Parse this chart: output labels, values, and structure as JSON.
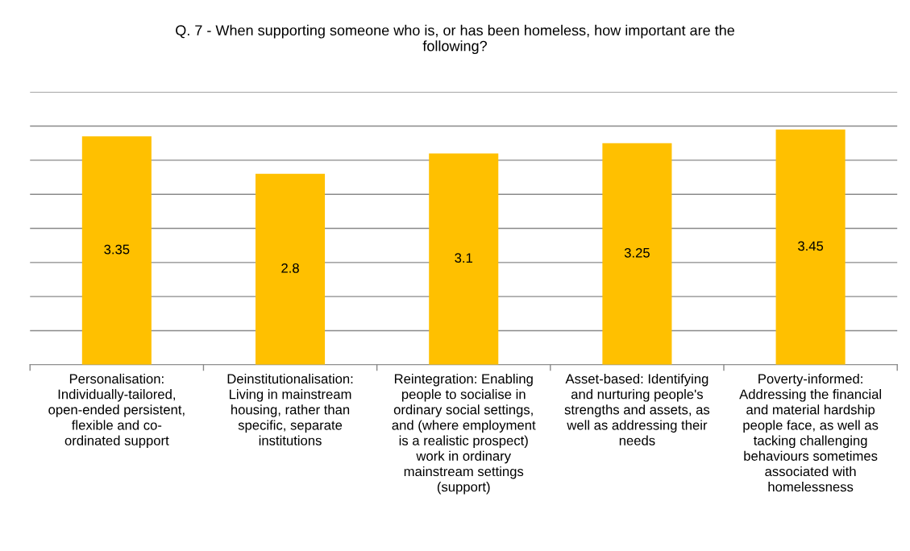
{
  "chart_data": {
    "type": "bar",
    "title": "Q. 7 - When supporting someone who is, or has been homeless, how important are the\nfollowing?",
    "categories": [
      "Personalisation:\nIndividually-tailored,\nopen-ended persistent,\nflexible and co-\nordinated support",
      "Deinstitutionalisation:\nLiving in mainstream\nhousing, rather than\nspecific, separate\ninstitutions",
      "Reintegration: Enabling\npeople to socialise in\nordinary social settings,\nand (where employment\nis a realistic prospect)\nwork in ordinary\nmainstream settings\n(support)",
      "Asset-based: Identifying\nand nurturing people's\nstrengths and assets, as\nwell as addressing their\nneeds",
      "Poverty-informed:\nAddressing the financial\nand material hardship\npeople face, as well as\ntacking challenging\nbehaviours sometimes\nassociated with\nhomelessness"
    ],
    "values": [
      3.35,
      2.8,
      3.1,
      3.25,
      3.45
    ],
    "color": "#ffc000",
    "data_labels": true,
    "ylim": [
      0,
      4
    ],
    "yticks": [
      {
        "value": 0,
        "label": null
      },
      {
        "value": 0.5,
        "label": null
      },
      {
        "value": 1,
        "label": null
      },
      {
        "value": 1.5,
        "label": null
      },
      {
        "value": 2,
        "label": null
      },
      {
        "value": 2.5,
        "label": null
      },
      {
        "value": 3,
        "label": null
      },
      {
        "value": 3.5,
        "label": null
      },
      {
        "value": 4,
        "label": null
      }
    ],
    "grid": "y",
    "tick_labels": "x"
  }
}
